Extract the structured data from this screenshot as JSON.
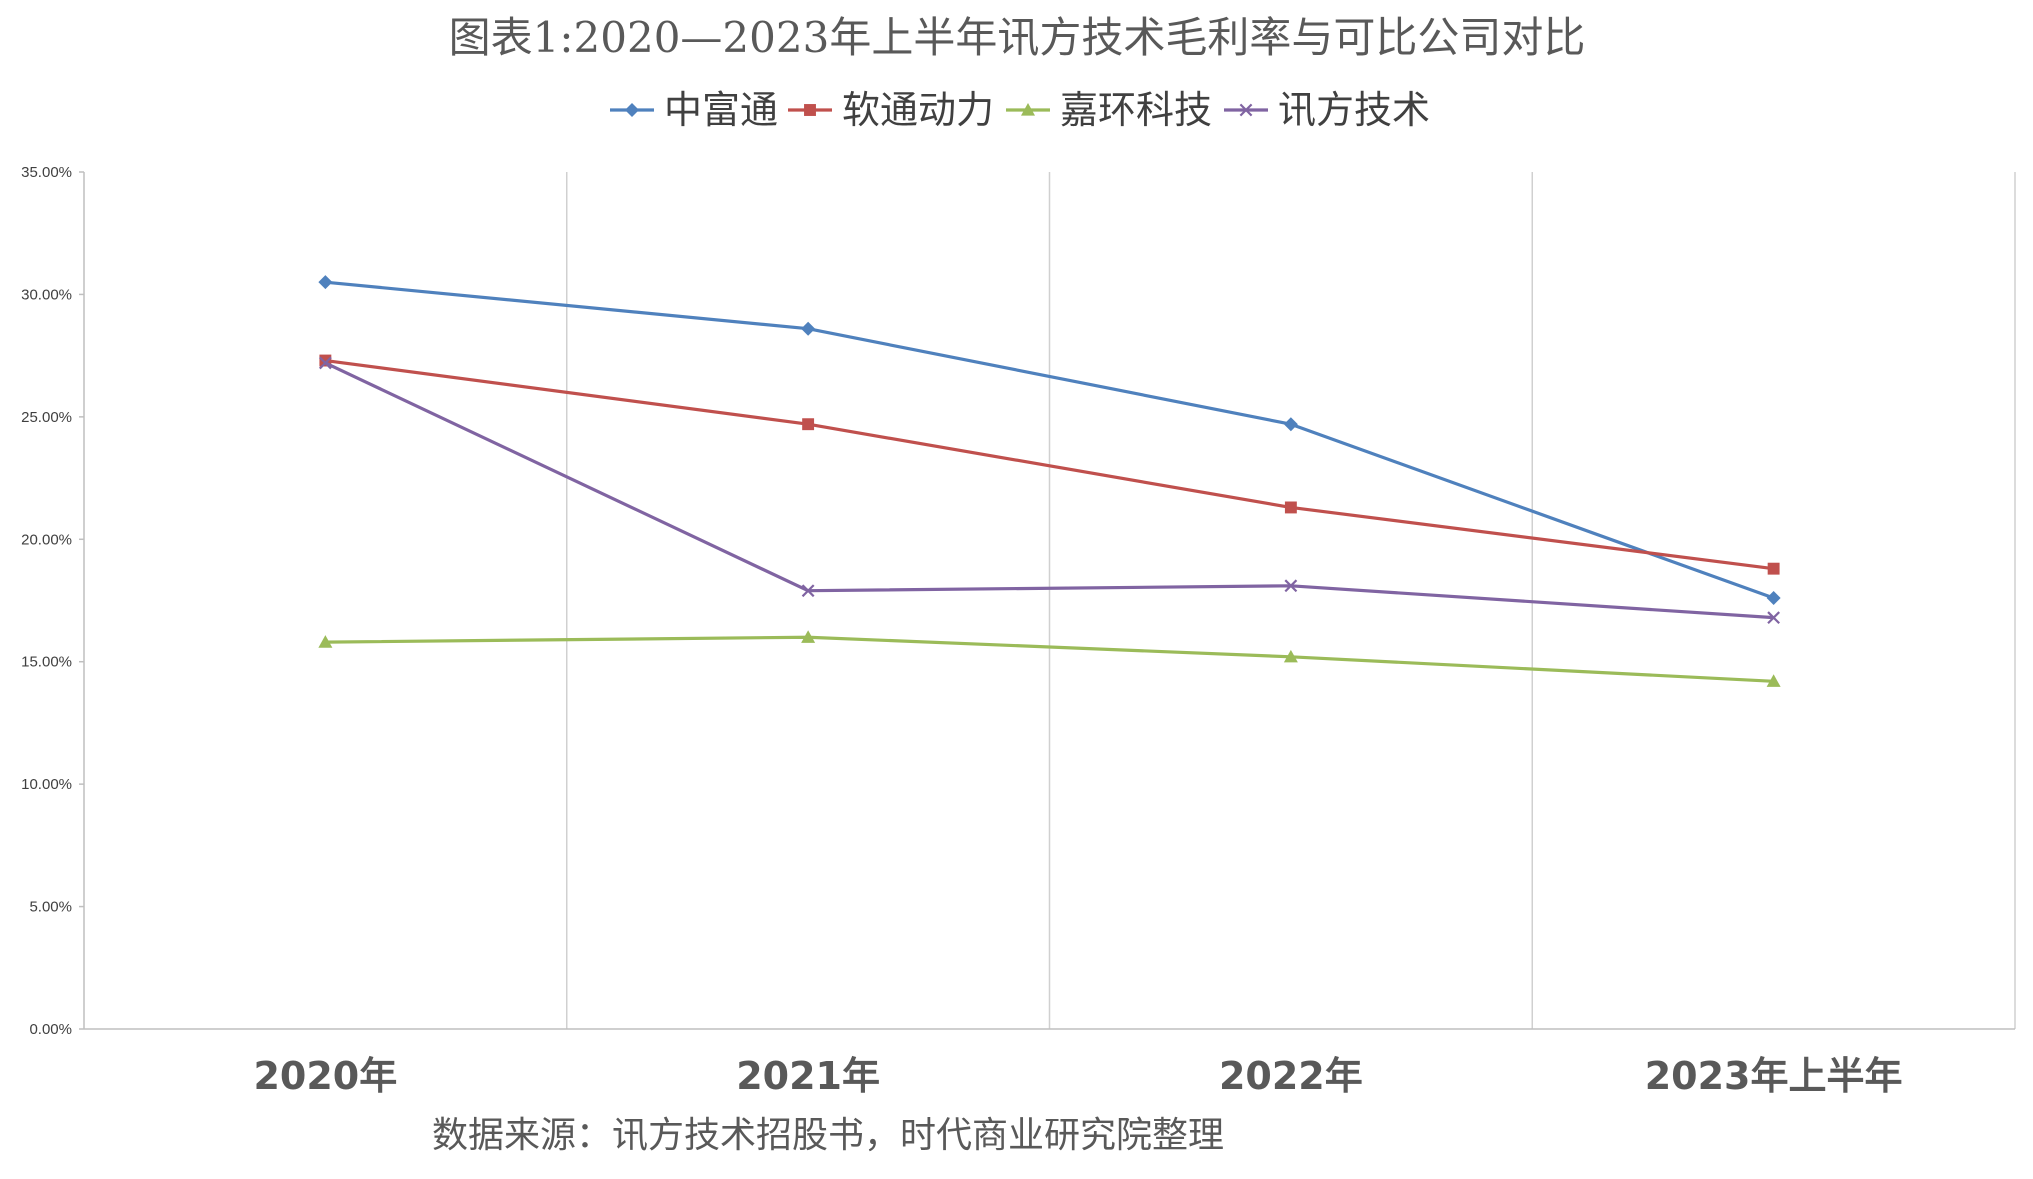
{
  "chart_data": {
    "type": "line",
    "title": "图表1:2020—2023年上半年讯方技术毛利率与可比公司对比",
    "categories": [
      "2020年",
      "2021年",
      "2022年",
      "2023年上半年"
    ],
    "y_ticks": [
      "0.00%",
      "5.00%",
      "10.00%",
      "15.00%",
      "20.00%",
      "25.00%",
      "30.00%",
      "35.00%"
    ],
    "ylim": [
      0,
      35
    ],
    "y_unit": "%",
    "grid": "vertical",
    "legend_position": "top-center",
    "series": [
      {
        "name": "中富通",
        "values": [
          30.5,
          28.6,
          24.7,
          17.6
        ],
        "color": "#4f81bd",
        "marker": "diamond"
      },
      {
        "name": "软通动力",
        "values": [
          27.3,
          24.7,
          21.3,
          18.8
        ],
        "color": "#c0504d",
        "marker": "square"
      },
      {
        "name": "嘉环科技",
        "values": [
          15.8,
          16.0,
          15.2,
          14.2
        ],
        "color": "#9bbb59",
        "marker": "triangle"
      },
      {
        "name": "讯方技术",
        "values": [
          27.2,
          17.9,
          18.1,
          16.8
        ],
        "color": "#8064a2",
        "marker": "x"
      }
    ],
    "source": "数据来源：讯方技术招股书，时代商业研究院整理"
  }
}
